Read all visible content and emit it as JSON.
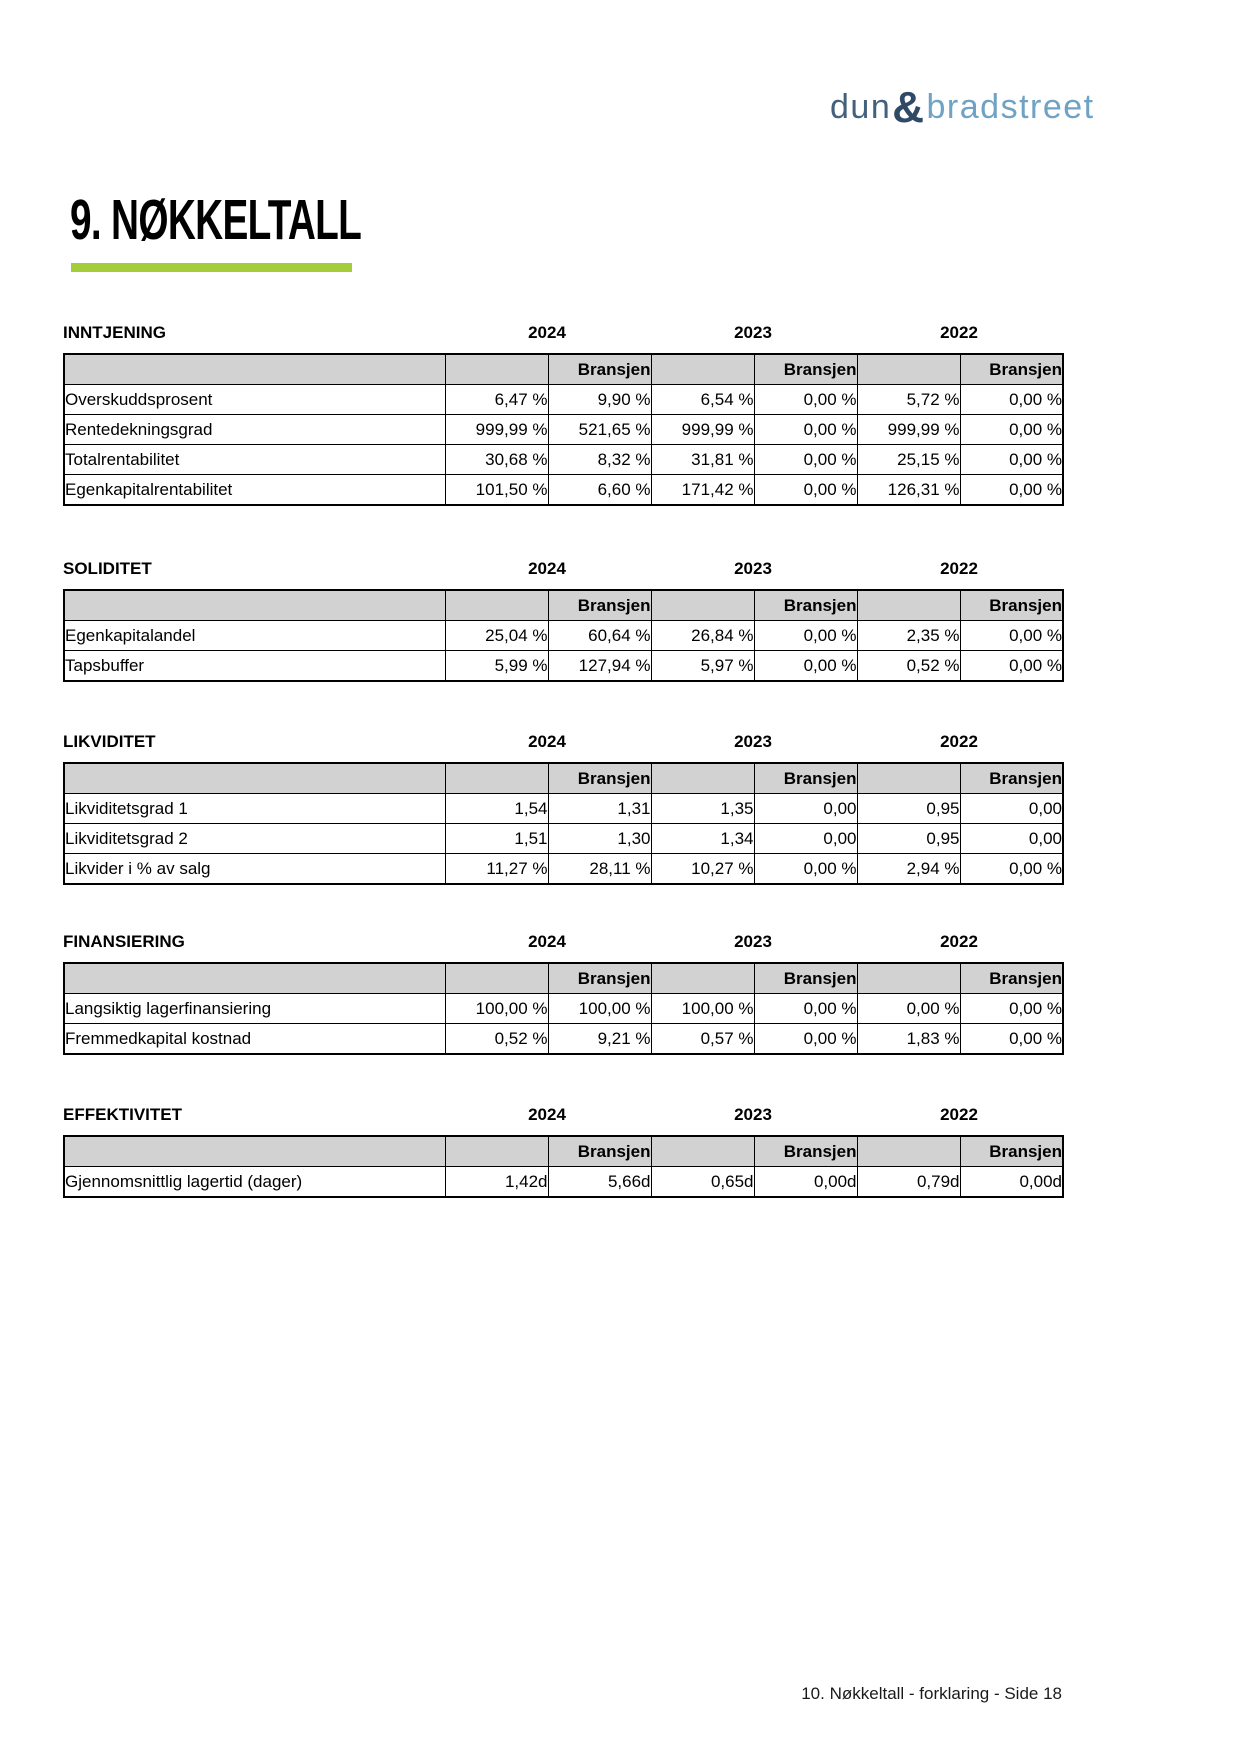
{
  "logo": {
    "part1": "dun",
    "amp": "&",
    "part2": "bradstreet"
  },
  "page_title": "9. NØKKELTALL",
  "years": [
    "2024",
    "2023",
    "2022"
  ],
  "bransjen_label": "Bransjen",
  "sections": [
    {
      "title": "INNTJENING",
      "rows": [
        {
          "label": "Overskuddsprosent",
          "values": [
            "6,47 %",
            "9,90 %",
            "6,54 %",
            "0,00 %",
            "5,72 %",
            "0,00 %"
          ]
        },
        {
          "label": "Rentedekningsgrad",
          "values": [
            "999,99 %",
            "521,65 %",
            "999,99 %",
            "0,00 %",
            "999,99 %",
            "0,00 %"
          ]
        },
        {
          "label": "Totalrentabilitet",
          "values": [
            "30,68 %",
            "8,32 %",
            "31,81 %",
            "0,00 %",
            "25,15 %",
            "0,00 %"
          ]
        },
        {
          "label": "Egenkapitalrentabilitet",
          "values": [
            "101,50 %",
            "6,60 %",
            "171,42 %",
            "0,00 %",
            "126,31 %",
            "0,00 %"
          ]
        }
      ]
    },
    {
      "title": "SOLIDITET",
      "rows": [
        {
          "label": "Egenkapitalandel",
          "values": [
            "25,04 %",
            "60,64 %",
            "26,84 %",
            "0,00 %",
            "2,35 %",
            "0,00 %"
          ]
        },
        {
          "label": "Tapsbuffer",
          "values": [
            "5,99 %",
            "127,94 %",
            "5,97 %",
            "0,00 %",
            "0,52 %",
            "0,00 %"
          ]
        }
      ]
    },
    {
      "title": "LIKVIDITET",
      "rows": [
        {
          "label": "Likviditetsgrad 1",
          "values": [
            "1,54",
            "1,31",
            "1,35",
            "0,00",
            "0,95",
            "0,00"
          ]
        },
        {
          "label": "Likviditetsgrad 2",
          "values": [
            "1,51",
            "1,30",
            "1,34",
            "0,00",
            "0,95",
            "0,00"
          ]
        },
        {
          "label": "Likvider i % av salg",
          "values": [
            "11,27 %",
            "28,11 %",
            "10,27 %",
            "0,00 %",
            "2,94 %",
            "0,00 %"
          ]
        }
      ]
    },
    {
      "title": "FINANSIERING",
      "rows": [
        {
          "label": "Langsiktig lagerfinansiering",
          "values": [
            "100,00 %",
            "100,00 %",
            "100,00 %",
            "0,00 %",
            "0,00 %",
            "0,00 %"
          ]
        },
        {
          "label": "Fremmedkapital kostnad",
          "values": [
            "0,52 %",
            "9,21 %",
            "0,57 %",
            "0,00 %",
            "1,83 %",
            "0,00 %"
          ]
        }
      ]
    },
    {
      "title": "EFFEKTIVITET",
      "rows": [
        {
          "label": "Gjennomsnittlig lagertid (dager)",
          "values": [
            "1,42d",
            "5,66d",
            "0,65d",
            "0,00d",
            "0,79d",
            "0,00d"
          ]
        }
      ]
    }
  ],
  "footer": {
    "text": "10. Nøkkeltall - forklaring - Side 18"
  },
  "colors": {
    "accent_green": "#a4cd3a",
    "table_header_gray": "#d2d2d2",
    "logo_dark": "#2e4a67",
    "logo_mid": "#43607c",
    "logo_light": "#6fa2c4"
  }
}
